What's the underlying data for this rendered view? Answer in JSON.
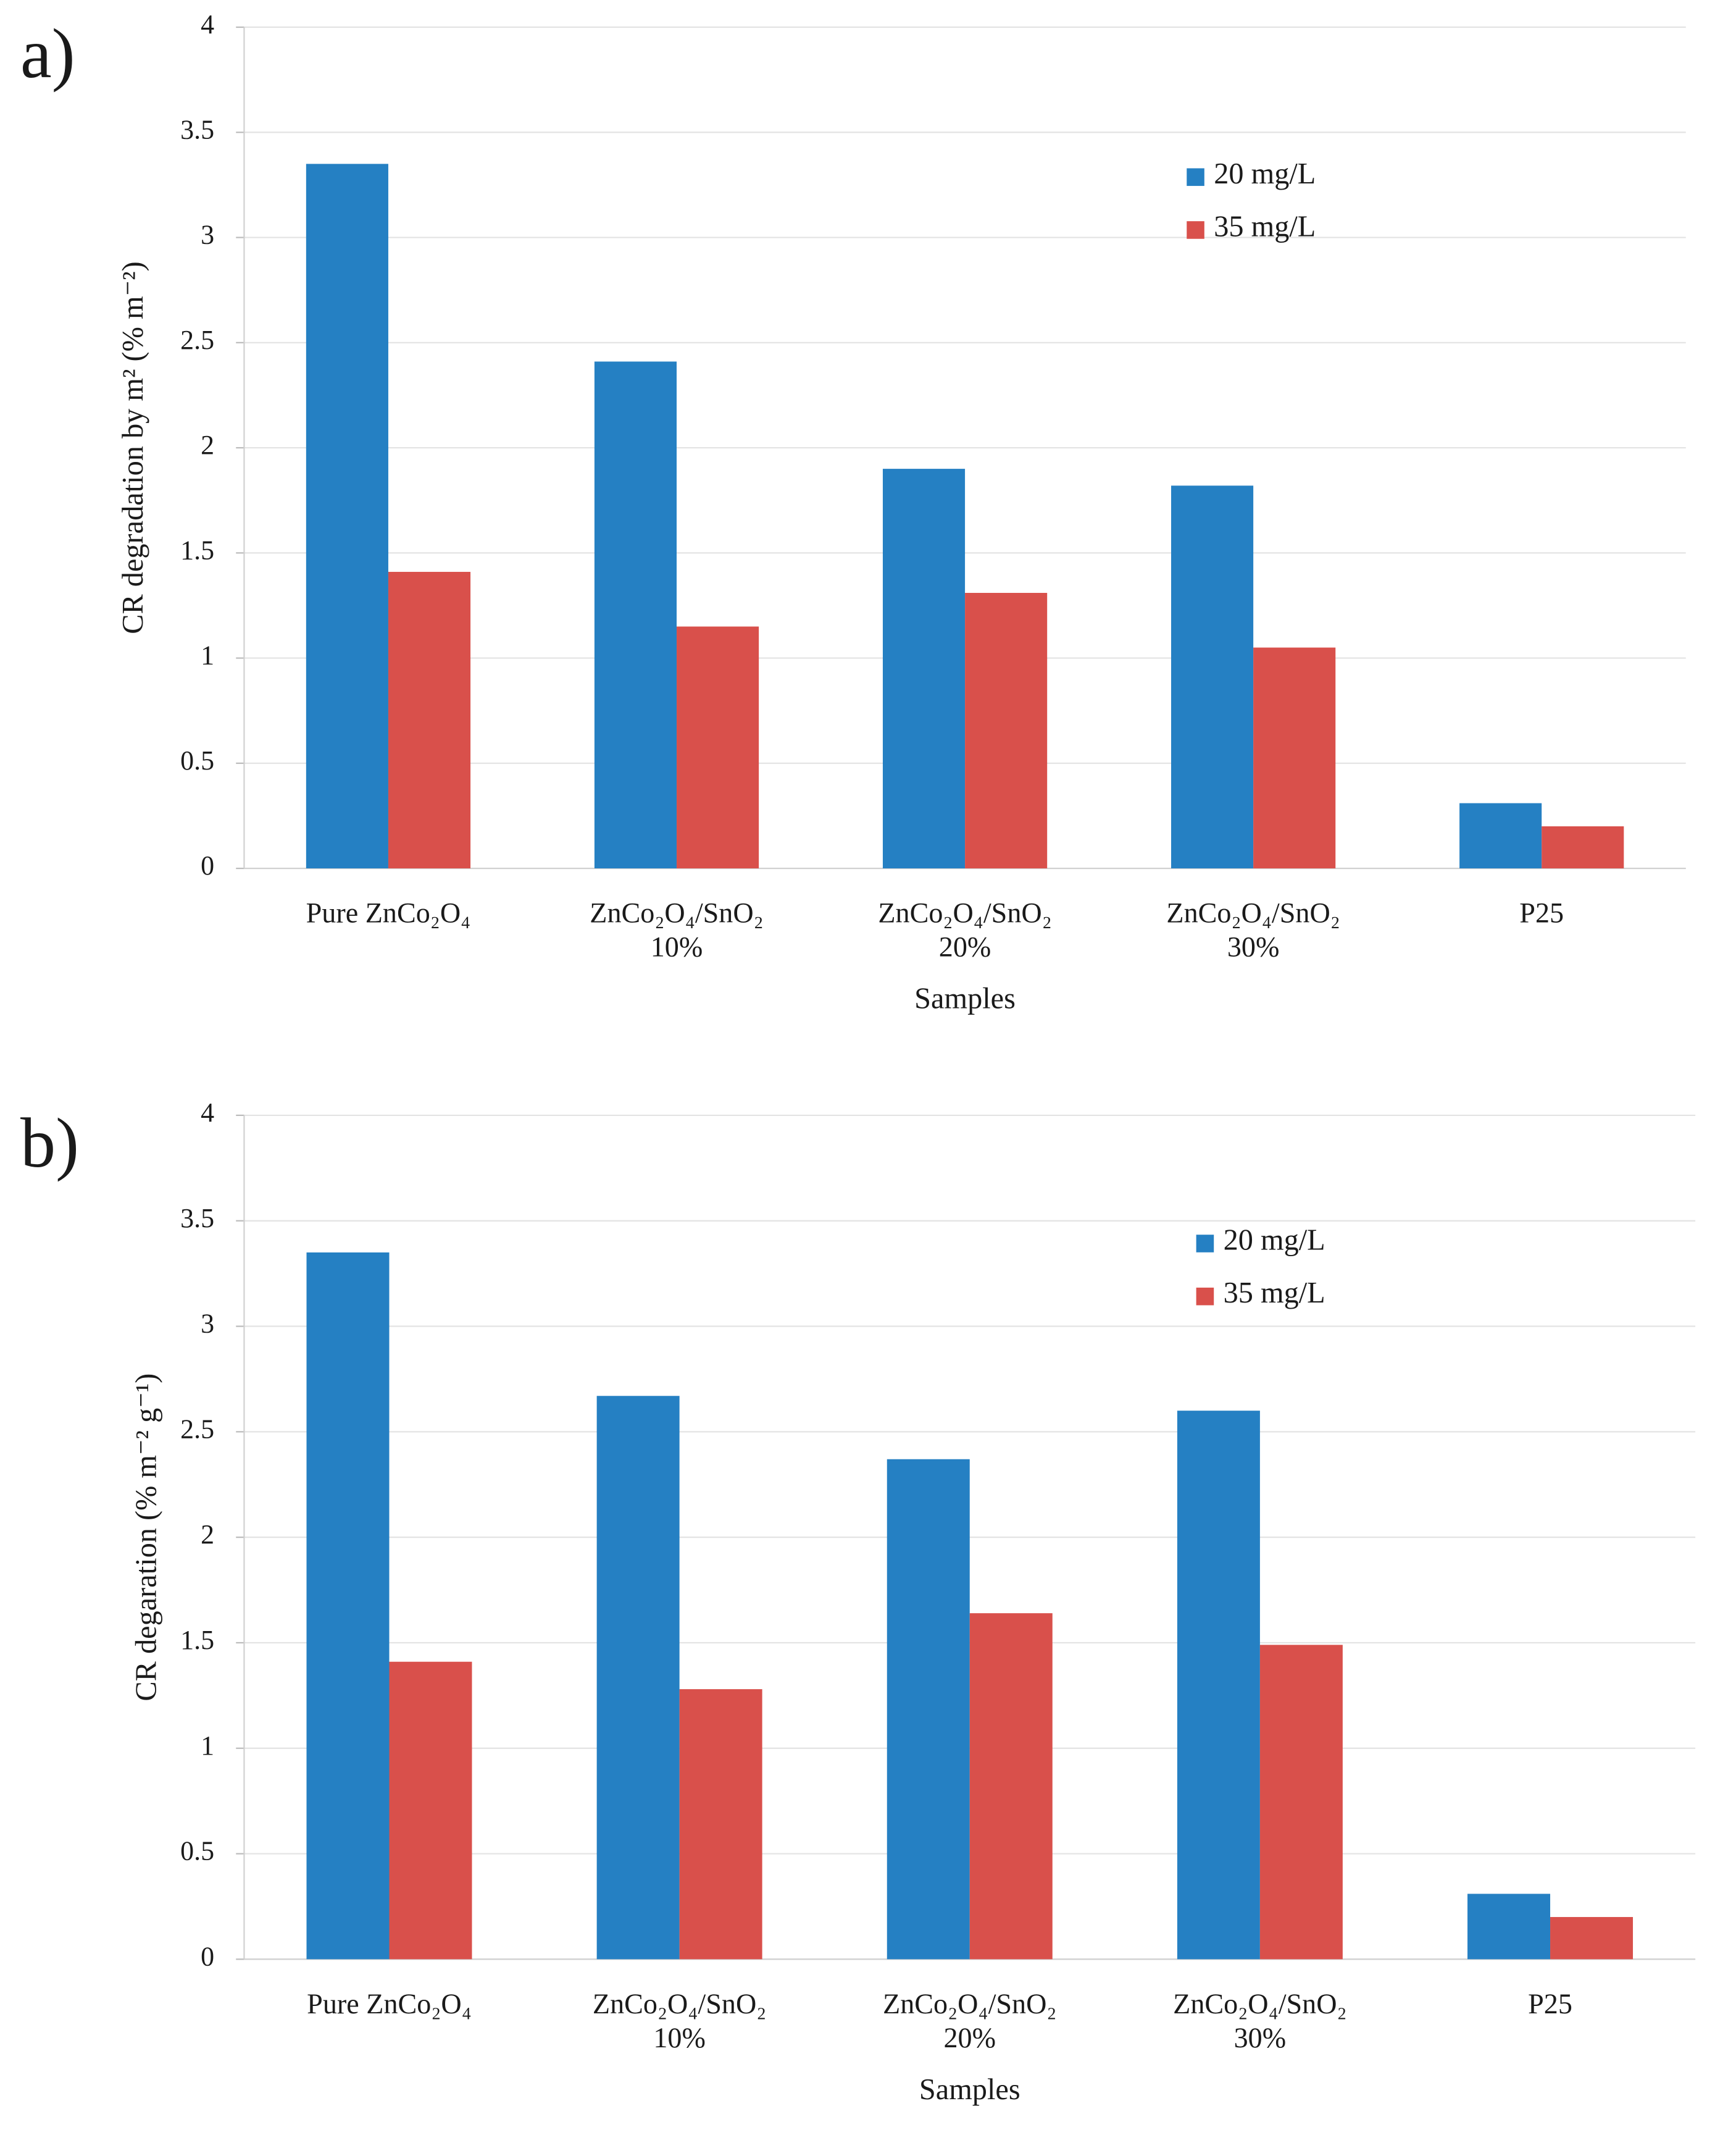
{
  "chart_data": [
    {
      "type": "bar",
      "panel_label": "a)",
      "y_label": "CR degradation by m² (% m⁻²)",
      "x_label": "Samples",
      "categories": [
        [
          "Pure ZnCo₂O₄"
        ],
        [
          "ZnCo₂O₄/SnO₂",
          "10%"
        ],
        [
          "ZnCo₂O₄/SnO₂",
          "20%"
        ],
        [
          "ZnCo₂O₄/SnO₂",
          "30%"
        ],
        [
          "P25"
        ]
      ],
      "series": [
        {
          "name": "20 mg/L",
          "color": "#2580c3",
          "values": [
            3.35,
            2.41,
            1.9,
            1.82,
            0.31
          ]
        },
        {
          "name": "35 mg/L",
          "color": "#d9504b",
          "values": [
            1.41,
            1.15,
            1.31,
            1.05,
            0.2
          ]
        }
      ],
      "ylim": [
        0,
        4
      ],
      "yticks": [
        0,
        0.5,
        1,
        1.5,
        2,
        2.5,
        3,
        3.5,
        4
      ],
      "grid": true,
      "legend": "upper-right"
    },
    {
      "type": "bar",
      "panel_label": "b)",
      "y_label": "CR degaration (% m⁻² g⁻¹)",
      "x_label": "Samples",
      "categories": [
        [
          "Pure ZnCo₂O₄"
        ],
        [
          "ZnCo₂O₄/SnO₂",
          "10%"
        ],
        [
          "ZnCo₂O₄/SnO₂",
          "20%"
        ],
        [
          "ZnCo₂O₄/SnO₂",
          "30%"
        ],
        [
          "P25"
        ]
      ],
      "series": [
        {
          "name": "20 mg/L",
          "color": "#2580c3",
          "values": [
            3.35,
            2.67,
            2.37,
            2.6,
            0.31
          ]
        },
        {
          "name": "35 mg/L",
          "color": "#d9504b",
          "values": [
            1.41,
            1.28,
            1.64,
            1.49,
            0.2
          ]
        }
      ],
      "ylim": [
        0,
        4
      ],
      "yticks": [
        0,
        0.5,
        1,
        1.5,
        2,
        2.5,
        3,
        3.5,
        4
      ],
      "grid": true,
      "legend": "upper-right"
    }
  ]
}
